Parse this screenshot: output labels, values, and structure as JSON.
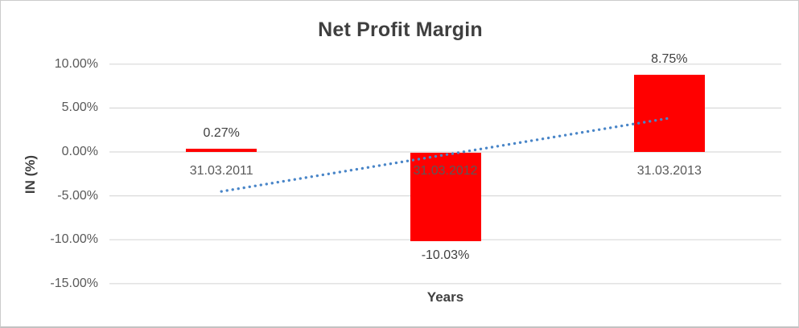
{
  "chart_data": {
    "type": "bar",
    "title": "Net Profit Margin",
    "xlabel": "Years",
    "ylabel": "IN (%)",
    "categories": [
      "31.03.2011",
      "31.03.2012",
      "31.03.2013"
    ],
    "values": [
      0.27,
      -10.03,
      8.75
    ],
    "data_labels": [
      "0.27%",
      "-10.03%",
      "8.75%"
    ],
    "yticks": [
      {
        "value": 10,
        "label": "10.00%"
      },
      {
        "value": 5,
        "label": "5.00%"
      },
      {
        "value": 0,
        "label": "0.00%"
      },
      {
        "value": -5,
        "label": "-5.00%"
      },
      {
        "value": -10,
        "label": "-10.00%"
      },
      {
        "value": -15,
        "label": "-15.00%"
      }
    ],
    "ylim": [
      -15,
      10
    ],
    "grid": true,
    "legend": false,
    "bar_color": "#FF0000",
    "gridline_color": "#D9D9D9",
    "trendline": {
      "type": "linear",
      "style": "dotted",
      "color": "#4A86C8",
      "start": {
        "category_index": 0,
        "value": -4.5
      },
      "end": {
        "category_index": 2,
        "value": 3.85
      }
    }
  }
}
